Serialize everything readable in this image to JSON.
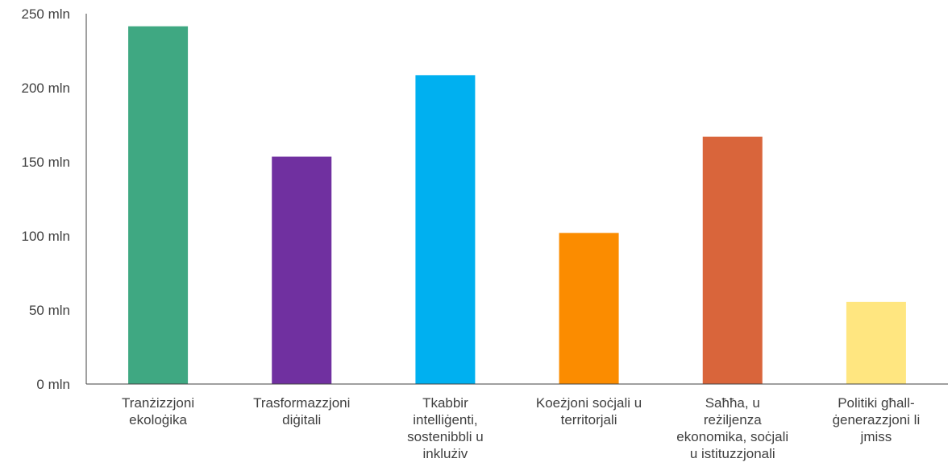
{
  "chart_data": {
    "type": "bar",
    "title": "",
    "xlabel": "",
    "ylabel": "",
    "ylim": [
      0,
      250
    ],
    "yticks": [
      0,
      50,
      100,
      150,
      200,
      250
    ],
    "ytick_suffix": " mln",
    "grid": false,
    "legend": "none",
    "categories": [
      [
        "Tranżizzjoni",
        "ekoloġika"
      ],
      [
        "Trasformazzjoni",
        "diġitali"
      ],
      [
        "Tkabbir",
        "intelliġenti,",
        "sostenibbli u",
        "inklużiv"
      ],
      [
        "Koeżjoni soċjali u",
        "territorjali"
      ],
      [
        "Saħħa, u",
        "reżiljenza",
        "ekonomika, soċjali",
        "u istituzzjonali"
      ],
      [
        "Politiki għall-",
        "ġenerazzjoni li",
        "jmiss"
      ]
    ],
    "values": [
      241.5,
      153.5,
      208.5,
      102.0,
      167.0,
      55.5
    ],
    "colors": [
      "#3fa882",
      "#7030a0",
      "#00b0f0",
      "#fb8c00",
      "#d9653b",
      "#ffe680"
    ]
  }
}
